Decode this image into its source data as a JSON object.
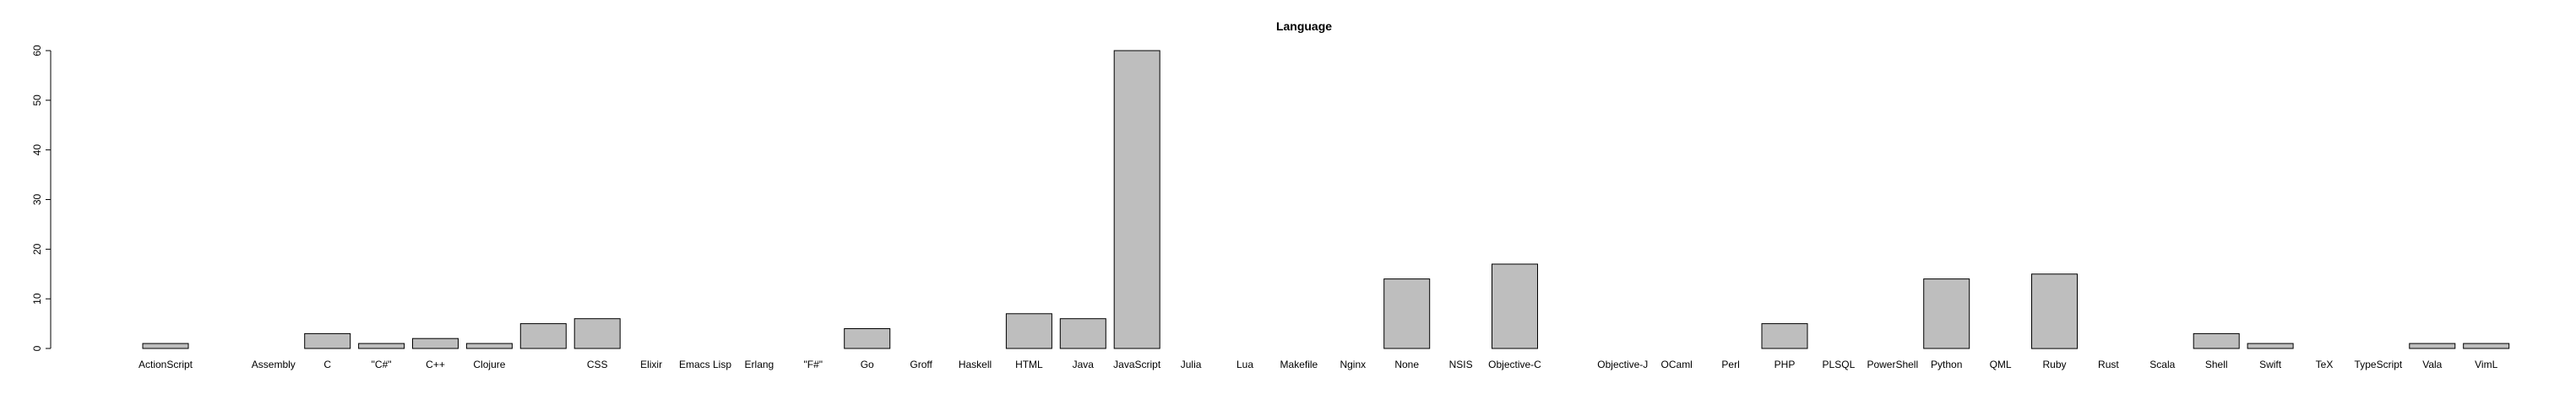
{
  "chart_data": {
    "type": "bar",
    "title": "Language",
    "xlabel": "",
    "ylabel": "",
    "ylim": [
      0,
      60
    ],
    "yticks": [
      0,
      10,
      20,
      30,
      40,
      50,
      60
    ],
    "grid": false,
    "legend": "none",
    "bar_color": "#bebebe",
    "categories": [
      "ActionScript",
      "",
      "Assembly",
      "C",
      "\"C#\"",
      "C++",
      "Clojure",
      "",
      "CSS",
      "Elixir",
      "Emacs Lisp",
      "Erlang",
      "\"F#\"",
      "Go",
      "Groff",
      "Haskell",
      "HTML",
      "Java",
      "JavaScript",
      "Julia",
      "Lua",
      "Makefile",
      "Nginx",
      "None",
      "NSIS",
      "Objective-C",
      "",
      "Objective-J",
      "OCaml",
      "Perl",
      "PHP",
      "PLSQL",
      "PowerShell",
      "Python",
      "QML",
      "Ruby",
      "Rust",
      "Scala",
      "Shell",
      "Swift",
      "TeX",
      "TypeScript",
      "Vala",
      "VimL"
    ],
    "values": [
      1,
      0,
      0,
      3,
      1,
      2,
      1,
      5,
      6,
      0,
      0,
      0,
      0,
      4,
      0,
      0,
      7,
      6,
      60,
      0,
      0,
      0,
      0,
      14,
      0,
      17,
      0,
      0,
      0,
      0,
      5,
      0,
      0,
      14,
      0,
      15,
      0,
      0,
      3,
      1,
      0,
      0,
      1,
      1
    ]
  }
}
